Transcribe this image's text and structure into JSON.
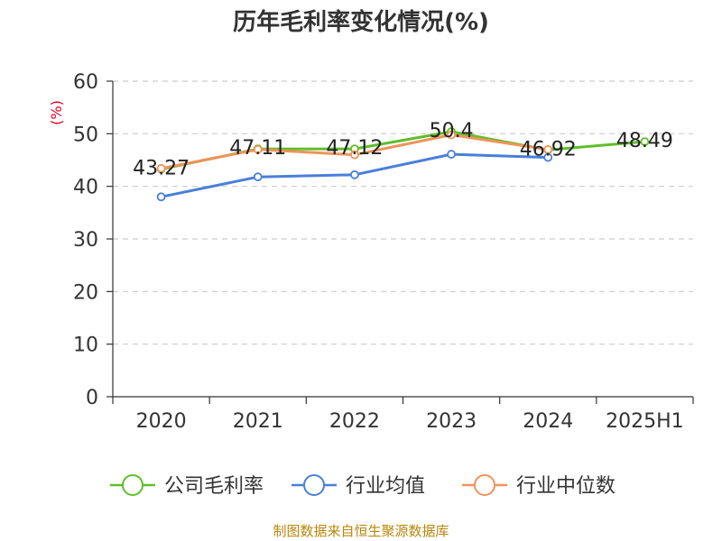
{
  "chart_data": {
    "type": "line",
    "title": "历年毛利率变化情况(%)",
    "ylabel": "(%)",
    "xlabel": "",
    "categories": [
      "2020",
      "2021",
      "2022",
      "2023",
      "2024",
      "2025H1"
    ],
    "ylim": [
      0,
      60
    ],
    "yticks": [
      0,
      10,
      20,
      30,
      40,
      50,
      60
    ],
    "grid": true,
    "legend_position": "bottom",
    "series": [
      {
        "name": "公司毛利率",
        "color": "#5fbf2a",
        "values": [
          43.27,
          47.11,
          47.12,
          50.4,
          46.92,
          48.49
        ]
      },
      {
        "name": "行业均值",
        "color": "#4a7fd9",
        "values": [
          38.0,
          41.8,
          42.2,
          46.1,
          45.5,
          null
        ]
      },
      {
        "name": "行业中位数",
        "color": "#f0935a",
        "values": [
          43.4,
          47.0,
          46.0,
          49.8,
          47.0,
          null
        ]
      }
    ],
    "data_labels": [
      "43.27",
      "47.11",
      "47.12",
      "50.4",
      "46.92",
      "48.49"
    ],
    "source": "制图数据来自恒生聚源数据库"
  }
}
